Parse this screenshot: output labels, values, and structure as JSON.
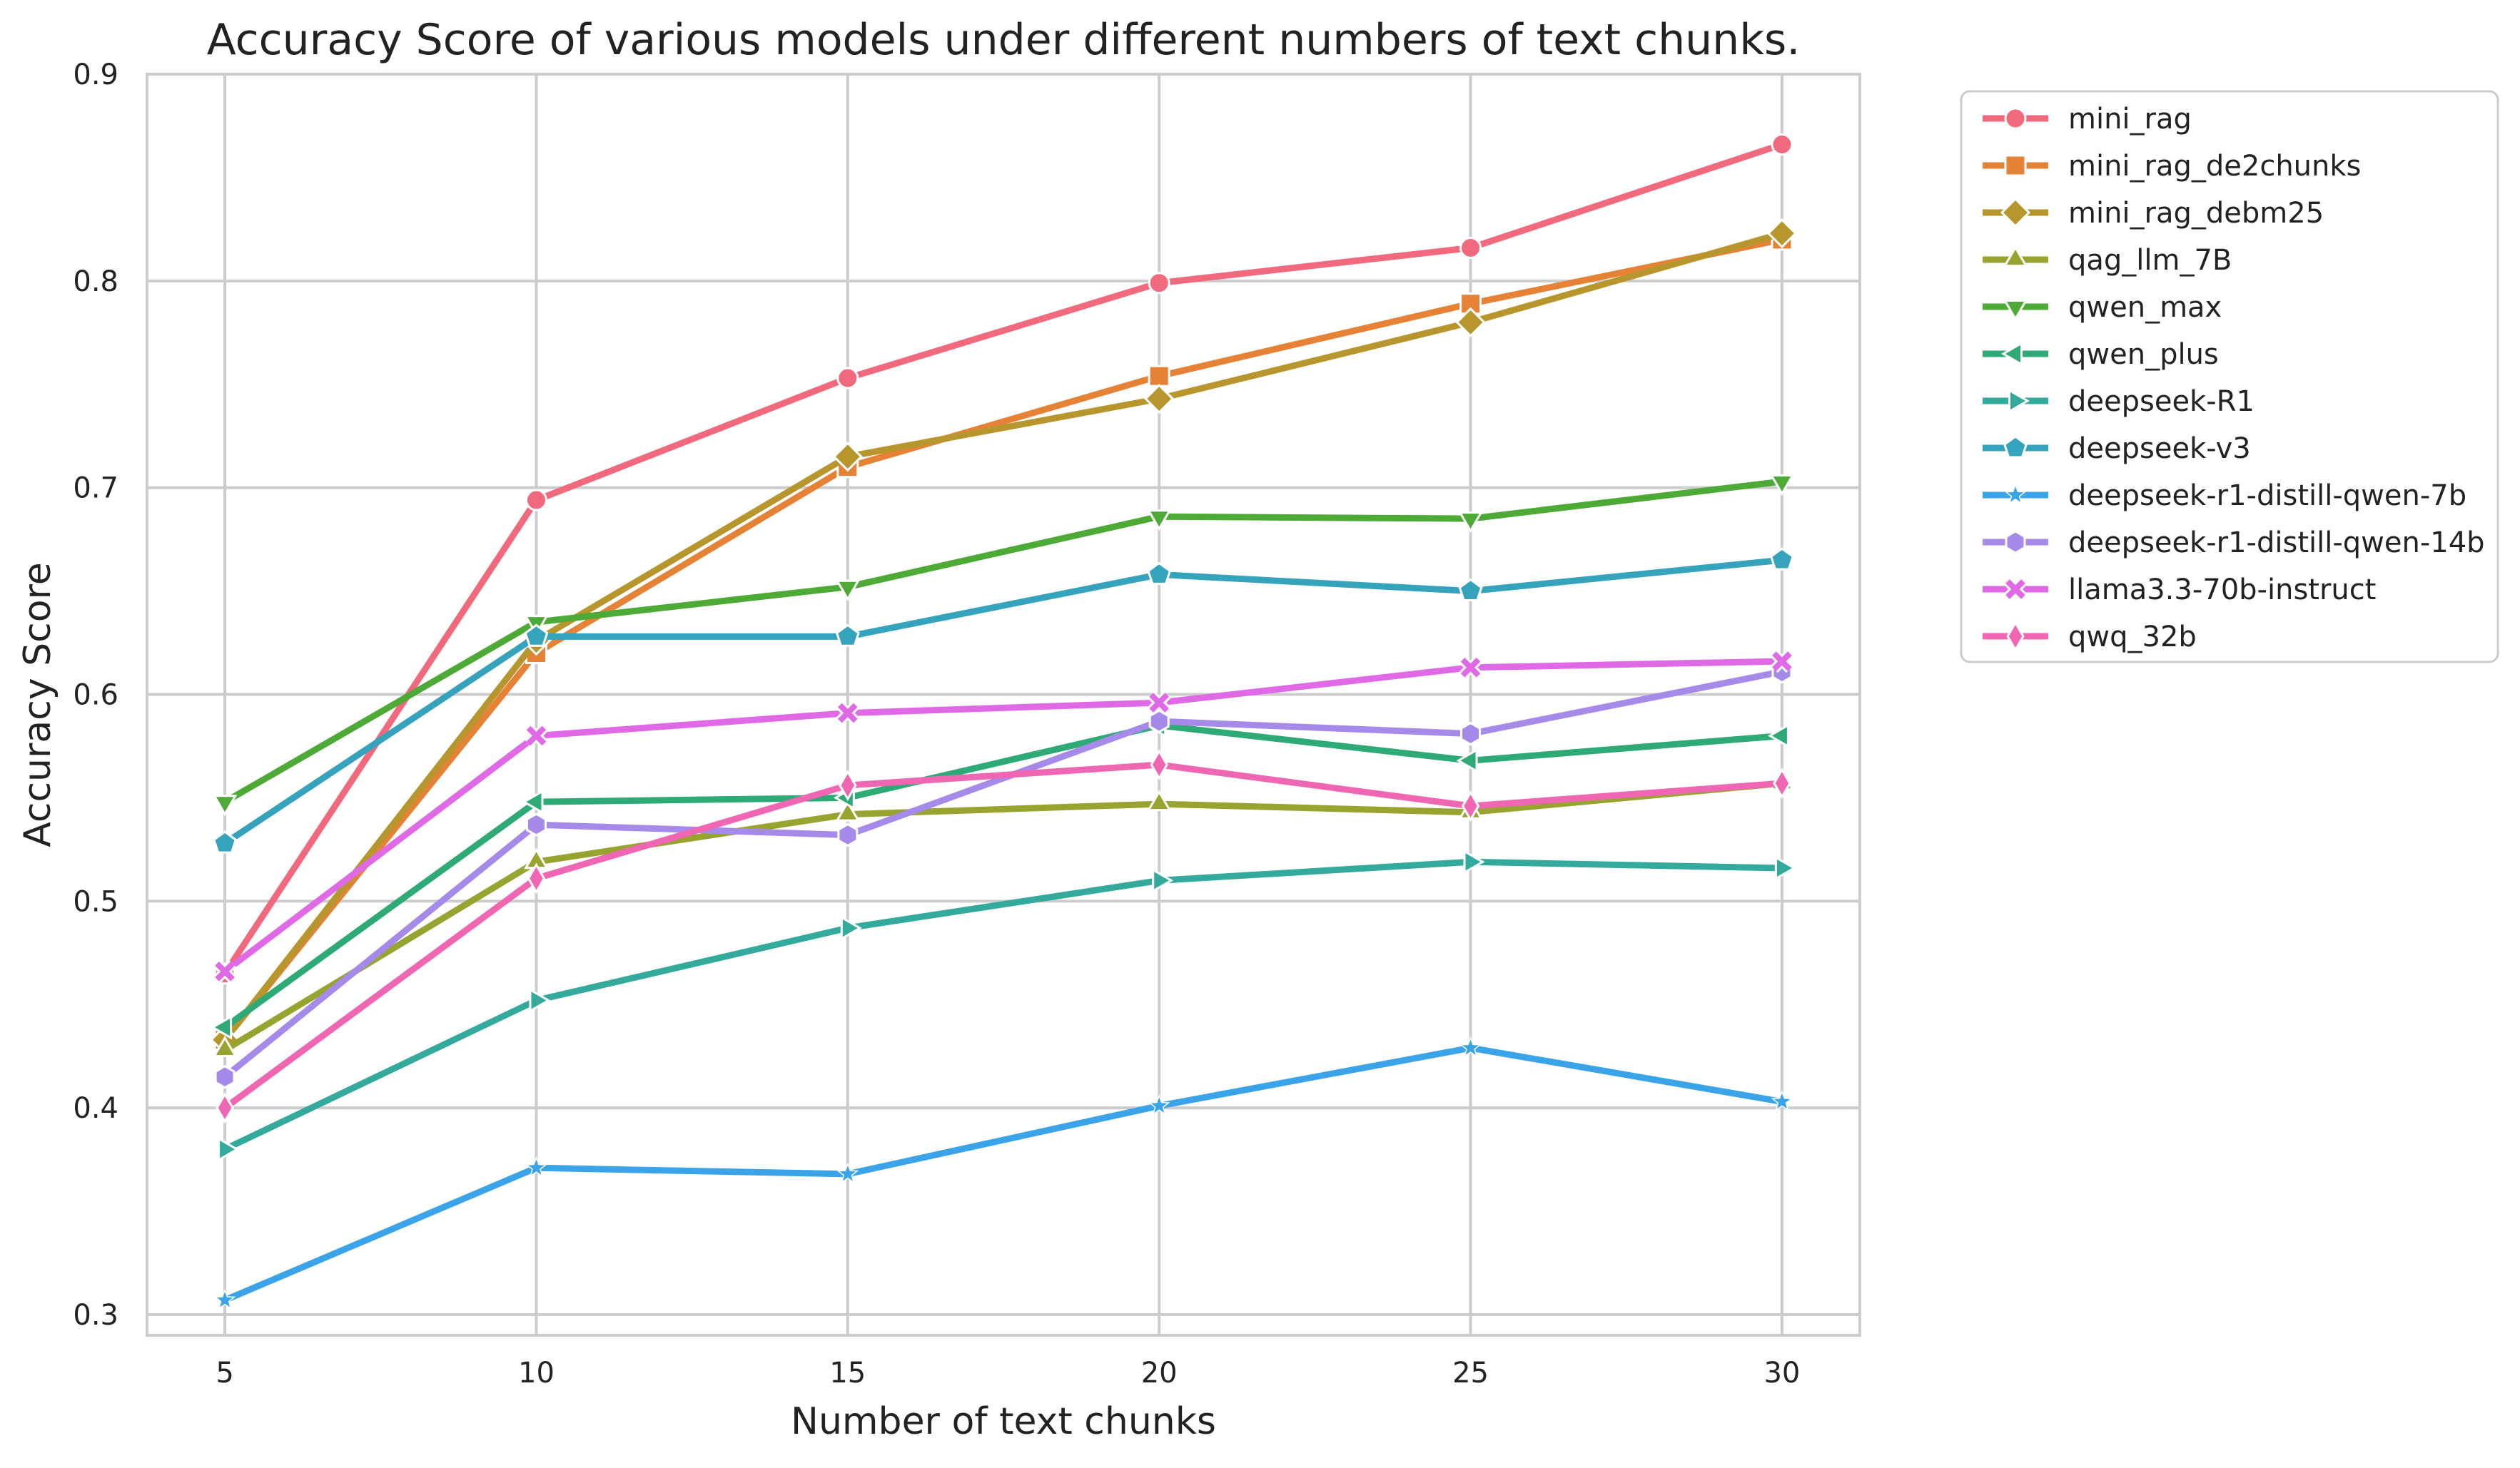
{
  "chart_data": {
    "type": "line",
    "title": "Accuracy Score of various models under different numbers of text chunks.",
    "xlabel": "Number of text chunks",
    "ylabel": "Accuracy Score",
    "x": [
      5,
      10,
      15,
      20,
      25,
      30
    ],
    "x_tick_labels": [
      "5",
      "10",
      "15",
      "20",
      "25",
      "30"
    ],
    "xlim": [
      3.75,
      31.25
    ],
    "ylim": [
      0.29,
      0.9
    ],
    "y_ticks": [
      0.3,
      0.4,
      0.5,
      0.6,
      0.7,
      0.8,
      0.9
    ],
    "y_tick_labels": [
      "0.3",
      "0.4",
      "0.5",
      "0.6",
      "0.7",
      "0.8",
      "0.9"
    ],
    "grid": true,
    "legend_position": "outside-right-top",
    "series": [
      {
        "name": "mini_rag",
        "color": "#f0697c",
        "marker": "circle",
        "values": [
          0.465,
          0.694,
          0.753,
          0.799,
          0.816,
          0.866
        ]
      },
      {
        "name": "mini_rag_de2chunks",
        "color": "#e58236",
        "marker": "square",
        "values": [
          0.433,
          0.62,
          0.71,
          0.754,
          0.789,
          0.82
        ]
      },
      {
        "name": "mini_rag_debm25",
        "color": "#b8962e",
        "marker": "diamond",
        "values": [
          0.433,
          0.626,
          0.715,
          0.743,
          0.78,
          0.823
        ]
      },
      {
        "name": "qag_llm_7B",
        "color": "#97a42f",
        "marker": "triangle-up",
        "values": [
          0.428,
          0.519,
          0.542,
          0.547,
          0.543,
          0.557
        ]
      },
      {
        "name": "qwen_max",
        "color": "#4eaa36",
        "marker": "triangle-down",
        "values": [
          0.548,
          0.635,
          0.652,
          0.686,
          0.685,
          0.703
        ]
      },
      {
        "name": "qwen_plus",
        "color": "#2eaa77",
        "marker": "triangle-left",
        "values": [
          0.439,
          0.548,
          0.55,
          0.585,
          0.568,
          0.58
        ]
      },
      {
        "name": "deepseek-R1",
        "color": "#33aa9c",
        "marker": "triangle-right",
        "values": [
          0.38,
          0.452,
          0.487,
          0.51,
          0.519,
          0.516
        ]
      },
      {
        "name": "deepseek-v3",
        "color": "#36a3bd",
        "marker": "pentagon",
        "values": [
          0.528,
          0.628,
          0.628,
          0.658,
          0.65,
          0.665
        ]
      },
      {
        "name": "deepseek-r1-distill-qwen-7b",
        "color": "#3ba3e8",
        "marker": "star",
        "values": [
          0.307,
          0.371,
          0.368,
          0.401,
          0.429,
          0.403
        ]
      },
      {
        "name": "deepseek-r1-distill-qwen-14b",
        "color": "#a58aea",
        "marker": "hexagon",
        "values": [
          0.415,
          0.537,
          0.532,
          0.587,
          0.581,
          0.611
        ]
      },
      {
        "name": "llama3.3-70b-instruct",
        "color": "#e06ae6",
        "marker": "x",
        "values": [
          0.466,
          0.58,
          0.591,
          0.596,
          0.613,
          0.616
        ]
      },
      {
        "name": "qwq_32b",
        "color": "#ef67b2",
        "marker": "thin-diamond",
        "values": [
          0.4,
          0.511,
          0.556,
          0.566,
          0.546,
          0.557
        ]
      }
    ]
  }
}
